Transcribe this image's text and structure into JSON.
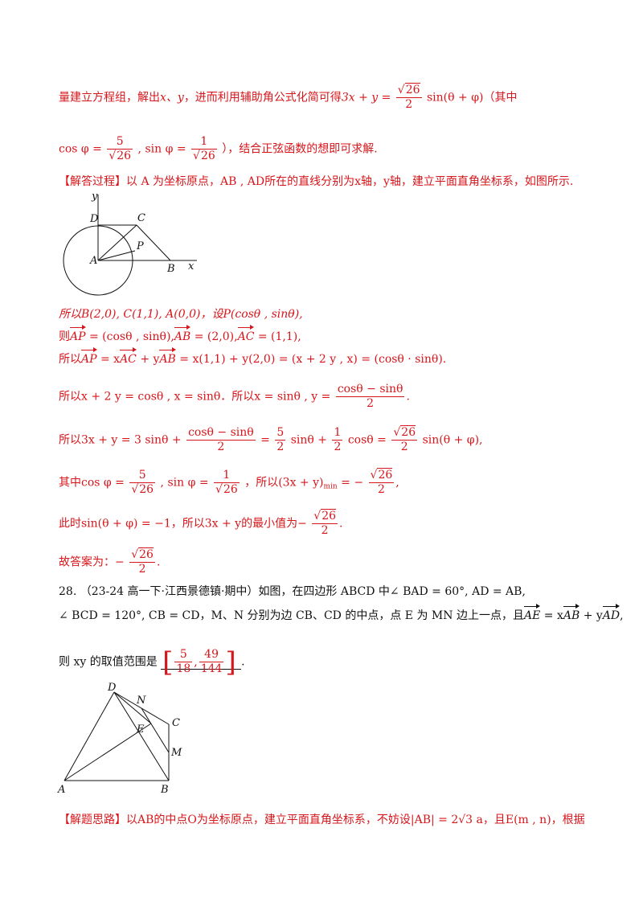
{
  "lines": {
    "l1_text": "量建立方程组，解出",
    "l1_vars": "x、y",
    "l1_text2": "，进而利用辅助角公式化简可得",
    "l1_expr": "3x + y =",
    "sqrt26": "26",
    "two": "2",
    "l1_sin": "sin(θ + φ)",
    "l1_tail": "（其中",
    "l2_cos": "cos φ =",
    "five": "5",
    "one": "1",
    "l2_sin": ", sin φ =",
    "l2_tail": "），结合正弦函数的想即可求解.",
    "l3_tag": "【解答过程】",
    "l3_text": "以 A 为坐标原点，AB , AD所在的直线分别为x轴，y轴，建立平面直角坐标系，如图所示.",
    "l4": "所以B(2,0), C(1,1), A(0,0)，设P(cosθ , sinθ),",
    "l5_a": "则",
    "l5_b": "= (cosθ , sinθ),",
    "l5_c": "= (2,0),",
    "l5_d": "= (1,1),",
    "l6_a": "所以",
    "l6_b": "= x",
    "l6_c": "+ y",
    "l6_d": "= x(1,1) + y(2,0) = (x + 2 y , x) = (cosθ · sinθ).",
    "l7_a": "所以x + 2 y = cosθ , x = sinθ．所以x = sinθ , y =",
    "l7_num": "cosθ − sinθ",
    "l8_a": "所以3x + y = 3 sinθ +",
    "l8_b": "=",
    "l8_c": "sinθ +",
    "l8_d": "cosθ =",
    "l8_e": "sin(θ + φ),",
    "l9_a": "其中cos φ =",
    "l9_b": ", sin φ =",
    "l9_c": "，所以(3x + y)",
    "l9_sub": "min",
    "l9_d": "= −",
    "l10_a": "此时sin(θ + φ) = −1，所以3x + y的最小值为−",
    "l11_a": "故答案为：−",
    "q_num": "28.",
    "q_src": "（23-24 高一下·江西景德镇·期中）",
    "q_text1": "如图，在四边形 ABCD 中∠ BAD = 60°, AD = AB,",
    "q_text2a": "∠ BCD = 120°, CB = CD，M、N 分别为边 CB、CD 的中点，点 E 为 MN 边上一点，且",
    "q_text2b": "= x",
    "q_text2c": "+ y",
    "q_text3a": "则 xy 的取值范围是",
    "ans_num1": "5",
    "ans_den1": "18",
    "ans_num2": "49",
    "ans_den2": "144",
    "q_text3b": ".",
    "l_last_tag": "【解题思路】",
    "l_last_text": "以AB的中点O为坐标原点，建立平面直角坐标系，不妨设|AB| = 2√3 a，且E(m , n)，根据"
  },
  "vectors": {
    "AP": "AP",
    "AB": "AB",
    "AC": "AC",
    "AE": "AE",
    "AD": "AD"
  },
  "fig1": {
    "labels": {
      "y": "y",
      "D": "D",
      "C": "C",
      "P": "P",
      "A": "A",
      "B": "B",
      "x": "x"
    }
  },
  "fig2": {
    "labels": {
      "D": "D",
      "N": "N",
      "E": "E",
      "C": "C",
      "M": "M",
      "A": "A",
      "B": "B"
    }
  }
}
